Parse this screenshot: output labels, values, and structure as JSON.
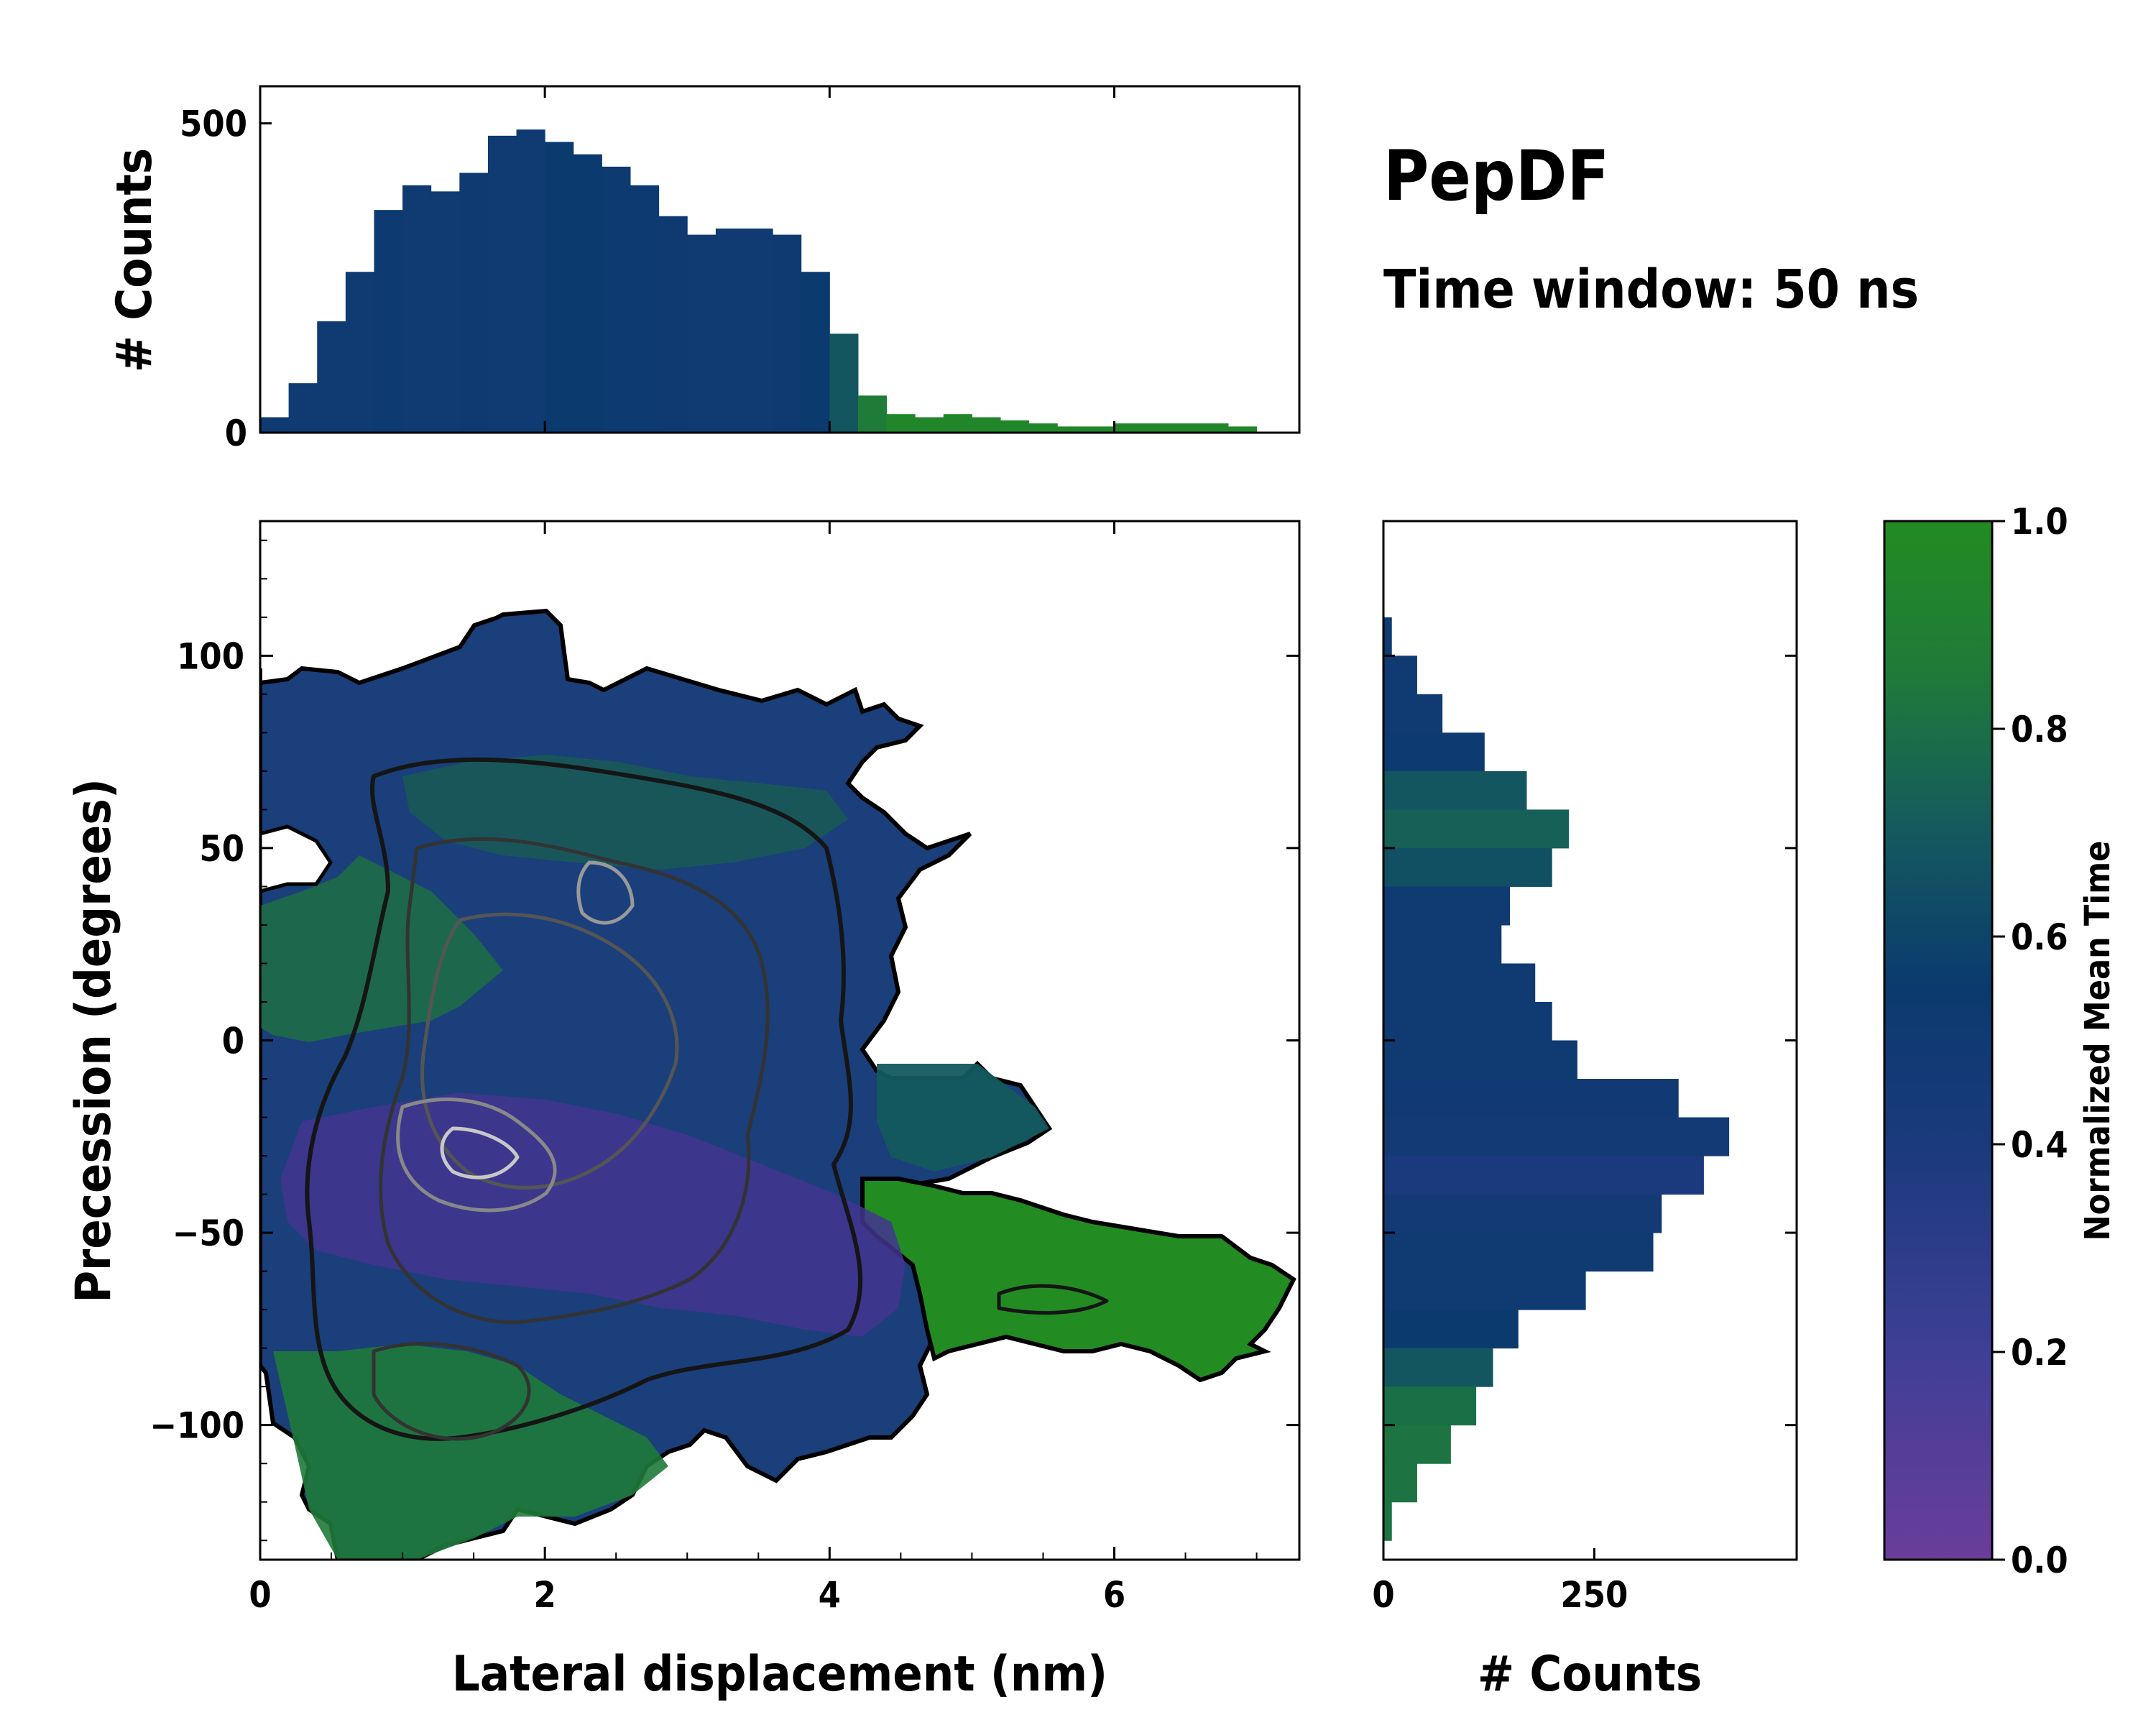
{
  "chart_data": {
    "type": "heatmap",
    "title": "PepDF",
    "subtitle": "Time window: 50 ns",
    "xlabel": "Lateral displacement (nm)",
    "ylabel": "Precession (degrees)",
    "xlim": [
      0,
      7.3
    ],
    "ylim": [
      -135,
      135
    ],
    "xticks": [
      "0",
      "2",
      "4",
      "6"
    ],
    "xtick_values": [
      0,
      2,
      4,
      6
    ],
    "yticks": [
      "−100",
      "−50",
      "0",
      "50",
      "100"
    ],
    "ytick_values": [
      -100,
      -50,
      0,
      50,
      100
    ],
    "colorbar": {
      "label": "Normalized Mean Time",
      "range": [
        0,
        1
      ],
      "ticks": [
        "0.0",
        "0.2",
        "0.4",
        "0.6",
        "0.8",
        "1.0"
      ],
      "tick_values": [
        0,
        0.2,
        0.4,
        0.6,
        0.8,
        1.0
      ],
      "colors": [
        "#6a3d9a",
        "#3f3f96",
        "#1a3a7c",
        "#0b3a6e",
        "#14595e",
        "#1f7a3a",
        "#228b22"
      ]
    },
    "top_histogram": {
      "ylabel": "# Counts",
      "yticks": [
        "0",
        "500"
      ],
      "tick_values": [
        0,
        500
      ],
      "ylim": [
        0,
        560
      ],
      "x": [
        0.1,
        0.3,
        0.5,
        0.7,
        0.9,
        1.1,
        1.3,
        1.5,
        1.7,
        1.9,
        2.1,
        2.3,
        2.5,
        2.7,
        2.9,
        3.1,
        3.3,
        3.5,
        3.7,
        3.9,
        4.1,
        4.3,
        4.5,
        4.7,
        4.9,
        5.1,
        5.3,
        5.5,
        5.7,
        5.9,
        6.1,
        6.3,
        6.5,
        6.7,
        6.9
      ],
      "values": [
        25,
        80,
        180,
        260,
        360,
        400,
        390,
        420,
        480,
        490,
        470,
        450,
        430,
        400,
        350,
        320,
        330,
        330,
        320,
        260,
        160,
        60,
        30,
        25,
        30,
        25,
        20,
        15,
        10,
        10,
        15,
        15,
        15,
        15,
        10
      ],
      "norm_time": [
        0.45,
        0.45,
        0.45,
        0.45,
        0.48,
        0.45,
        0.45,
        0.47,
        0.45,
        0.45,
        0.5,
        0.5,
        0.48,
        0.48,
        0.47,
        0.45,
        0.45,
        0.45,
        0.47,
        0.5,
        0.65,
        0.85,
        0.95,
        0.95,
        0.95,
        0.95,
        0.95,
        0.95,
        0.95,
        0.95,
        0.95,
        0.95,
        0.95,
        0.95,
        0.95
      ]
    },
    "right_histogram": {
      "xlabel": "# Counts",
      "xticks": [
        "0",
        "250"
      ],
      "tick_values": [
        0,
        250
      ],
      "xlim": [
        0,
        490
      ],
      "y": [
        105,
        95,
        85,
        75,
        65,
        55,
        45,
        35,
        25,
        15,
        5,
        -5,
        -15,
        -25,
        -35,
        -45,
        -55,
        -65,
        -75,
        -85,
        -95,
        -105,
        -115,
        -125
      ],
      "values": [
        10,
        40,
        70,
        120,
        170,
        220,
        200,
        150,
        140,
        180,
        200,
        230,
        350,
        410,
        380,
        330,
        320,
        240,
        160,
        130,
        110,
        80,
        40,
        10
      ],
      "norm_time": [
        0.45,
        0.45,
        0.45,
        0.48,
        0.65,
        0.7,
        0.62,
        0.45,
        0.45,
        0.45,
        0.45,
        0.45,
        0.43,
        0.4,
        0.33,
        0.4,
        0.45,
        0.45,
        0.5,
        0.65,
        0.78,
        0.8,
        0.8,
        0.8
      ]
    }
  }
}
